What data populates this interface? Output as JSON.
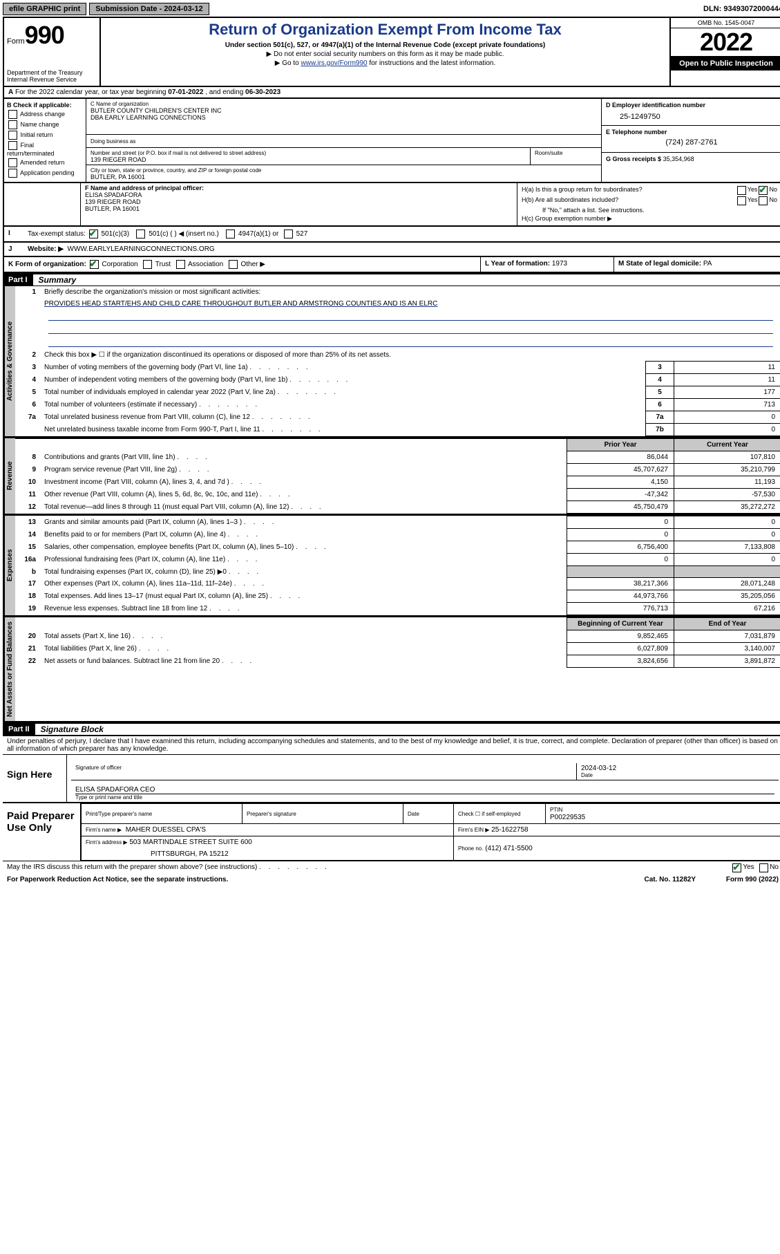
{
  "topbar": {
    "efile": "efile GRAPHIC print",
    "submission_label": "Submission Date - 2024-03-12",
    "dln": "DLN: 93493072000444"
  },
  "header": {
    "form_prefix": "Form",
    "form_number": "990",
    "dept": "Department of the Treasury",
    "irs": "Internal Revenue Service",
    "title": "Return of Organization Exempt From Income Tax",
    "sub1": "Under section 501(c), 527, or 4947(a)(1) of the Internal Revenue Code (except private foundations)",
    "sub2": "▶ Do not enter social security numbers on this form as it may be made public.",
    "sub3_pre": "▶ Go to ",
    "sub3_link": "www.irs.gov/Form990",
    "sub3_post": " for instructions and the latest information.",
    "omb": "OMB No. 1545-0047",
    "year": "2022",
    "inspection": "Open to Public Inspection"
  },
  "rowA": {
    "text_pre": "For the 2022 calendar year, or tax year beginning ",
    "begin": "07-01-2022",
    "mid": " , and ending ",
    "end": "06-30-2023"
  },
  "colB": {
    "title": "B Check if applicable:",
    "items": [
      "Address change",
      "Name change",
      "Initial return",
      "Final return/terminated",
      "Amended return",
      "Application pending"
    ]
  },
  "colC": {
    "name_label": "C Name of organization",
    "name1": "BUTLER COUNTY CHILDREN'S CENTER INC",
    "name2": "DBA EARLY LEARNING CONNECTIONS",
    "dba_label": "Doing business as",
    "addr_label": "Number and street (or P.O. box if mail is not delivered to street address)",
    "addr": "139 RIEGER ROAD",
    "room_label": "Room/suite",
    "city_label": "City or town, state or province, country, and ZIP or foreign postal code",
    "city": "BUTLER, PA  16001"
  },
  "colD": {
    "label": "D Employer identification number",
    "value": "25-1249750"
  },
  "colE": {
    "label": "E Telephone number",
    "value": "(724) 287-2761"
  },
  "colG": {
    "label": "G Gross receipts $",
    "value": "35,354,968"
  },
  "colF": {
    "label": "F Name and address of principal officer:",
    "l1": "ELISA SPADAFORA",
    "l2": "139 RIEGER ROAD",
    "l3": "BUTLER, PA  16001"
  },
  "colH": {
    "ha": "H(a)  Is this a group return for subordinates?",
    "hb": "H(b)  Are all subordinates included?",
    "hb_note": "If \"No,\" attach a list. See instructions.",
    "hc": "H(c)  Group exemption number ▶",
    "yes": "Yes",
    "no": "No"
  },
  "rowI": {
    "label": "Tax-exempt status:",
    "o1": "501(c)(3)",
    "o2": "501(c) (   ) ◀ (insert no.)",
    "o3": "4947(a)(1) or",
    "o4": "527"
  },
  "rowJ": {
    "label": "Website: ▶",
    "value": "WWW.EARLYLEARNINGCONNECTIONS.ORG"
  },
  "rowK": {
    "label": "K Form of organization:",
    "o1": "Corporation",
    "o2": "Trust",
    "o3": "Association",
    "o4": "Other ▶",
    "l_label": "L Year of formation:",
    "l_val": "1973",
    "m_label": "M State of legal domicile:",
    "m_val": "PA"
  },
  "part1": {
    "hdr": "Part I",
    "title": "Summary",
    "line1_label": "Briefly describe the organization's mission or most significant activities:",
    "mission": "PROVIDES HEAD START/EHS AND CHILD CARE THROUGHOUT BUTLER AND ARMSTRONG COUNTIES AND IS AN ELRC",
    "line2": "Check this box ▶ ☐  if the organization discontinued its operations or disposed of more than 25% of its net assets.",
    "gov_label": "Activities & Governance",
    "rev_label": "Revenue",
    "exp_label": "Expenses",
    "net_label": "Net Assets or Fund Balances",
    "prior": "Prior Year",
    "current": "Current Year",
    "begin": "Beginning of Current Year",
    "end": "End of Year",
    "rows_gov": [
      {
        "n": "3",
        "t": "Number of voting members of the governing body (Part VI, line 1a)",
        "box": "3",
        "v": "11"
      },
      {
        "n": "4",
        "t": "Number of independent voting members of the governing body (Part VI, line 1b)",
        "box": "4",
        "v": "11"
      },
      {
        "n": "5",
        "t": "Total number of individuals employed in calendar year 2022 (Part V, line 2a)",
        "box": "5",
        "v": "177"
      },
      {
        "n": "6",
        "t": "Total number of volunteers (estimate if necessary)",
        "box": "6",
        "v": "713"
      },
      {
        "n": "7a",
        "t": "Total unrelated business revenue from Part VIII, column (C), line 12",
        "box": "7a",
        "v": "0"
      },
      {
        "n": "",
        "t": "Net unrelated business taxable income from Form 990-T, Part I, line 11",
        "box": "7b",
        "v": "0"
      }
    ],
    "rows_rev": [
      {
        "n": "8",
        "t": "Contributions and grants (Part VIII, line 1h)",
        "p": "86,044",
        "c": "107,810"
      },
      {
        "n": "9",
        "t": "Program service revenue (Part VIII, line 2g)",
        "p": "45,707,627",
        "c": "35,210,799"
      },
      {
        "n": "10",
        "t": "Investment income (Part VIII, column (A), lines 3, 4, and 7d )",
        "p": "4,150",
        "c": "11,193"
      },
      {
        "n": "11",
        "t": "Other revenue (Part VIII, column (A), lines 5, 6d, 8c, 9c, 10c, and 11e)",
        "p": "-47,342",
        "c": "-57,530"
      },
      {
        "n": "12",
        "t": "Total revenue—add lines 8 through 11 (must equal Part VIII, column (A), line 12)",
        "p": "45,750,479",
        "c": "35,272,272"
      }
    ],
    "rows_exp": [
      {
        "n": "13",
        "t": "Grants and similar amounts paid (Part IX, column (A), lines 1–3 )",
        "p": "0",
        "c": "0"
      },
      {
        "n": "14",
        "t": "Benefits paid to or for members (Part IX, column (A), line 4)",
        "p": "0",
        "c": "0"
      },
      {
        "n": "15",
        "t": "Salaries, other compensation, employee benefits (Part IX, column (A), lines 5–10)",
        "p": "6,756,400",
        "c": "7,133,808"
      },
      {
        "n": "16a",
        "t": "Professional fundraising fees (Part IX, column (A), line 11e)",
        "p": "0",
        "c": "0"
      },
      {
        "n": "b",
        "t": "Total fundraising expenses (Part IX, column (D), line 25) ▶0",
        "p": "",
        "c": "",
        "grey": true
      },
      {
        "n": "17",
        "t": "Other expenses (Part IX, column (A), lines 11a–11d, 11f–24e)",
        "p": "38,217,366",
        "c": "28,071,248"
      },
      {
        "n": "18",
        "t": "Total expenses. Add lines 13–17 (must equal Part IX, column (A), line 25)",
        "p": "44,973,766",
        "c": "35,205,056"
      },
      {
        "n": "19",
        "t": "Revenue less expenses. Subtract line 18 from line 12",
        "p": "776,713",
        "c": "67,216"
      }
    ],
    "rows_net": [
      {
        "n": "20",
        "t": "Total assets (Part X, line 16)",
        "p": "9,852,465",
        "c": "7,031,879"
      },
      {
        "n": "21",
        "t": "Total liabilities (Part X, line 26)",
        "p": "6,027,809",
        "c": "3,140,007"
      },
      {
        "n": "22",
        "t": "Net assets or fund balances. Subtract line 21 from line 20",
        "p": "3,824,656",
        "c": "3,891,872"
      }
    ]
  },
  "part2": {
    "hdr": "Part II",
    "title": "Signature Block",
    "decl": "Under penalties of perjury, I declare that I have examined this return, including accompanying schedules and statements, and to the best of my knowledge and belief, it is true, correct, and complete. Declaration of preparer (other than officer) is based on all information of which preparer has any knowledge.",
    "sign_here": "Sign Here",
    "sig_officer": "Signature of officer",
    "sig_date": "2024-03-12",
    "date_lbl": "Date",
    "officer": "ELISA SPADAFORA CEO",
    "type_name": "Type or print name and title",
    "paid_prep": "Paid Preparer Use Only",
    "prep_name_lbl": "Print/Type preparer's name",
    "prep_sig_lbl": "Preparer's signature",
    "check_self": "Check ☐ if self-employed",
    "ptin_lbl": "PTIN",
    "ptin": "P00229535",
    "firm_name_lbl": "Firm's name    ▶",
    "firm_name": "MAHER DUESSEL CPA'S",
    "firm_ein_lbl": "Firm's EIN ▶",
    "firm_ein": "25-1622758",
    "firm_addr_lbl": "Firm's address ▶",
    "firm_addr1": "503 MARTINDALE STREET SUITE 600",
    "firm_addr2": "PITTSBURGH, PA  15212",
    "phone_lbl": "Phone no.",
    "phone": "(412) 471-5500",
    "discuss": "May the IRS discuss this return with the preparer shown above? (see instructions)",
    "yes": "Yes",
    "no": "No"
  },
  "footer": {
    "paperwork": "For Paperwork Reduction Act Notice, see the separate instructions.",
    "cat": "Cat. No. 11282Y",
    "form": "Form 990 (2022)"
  }
}
